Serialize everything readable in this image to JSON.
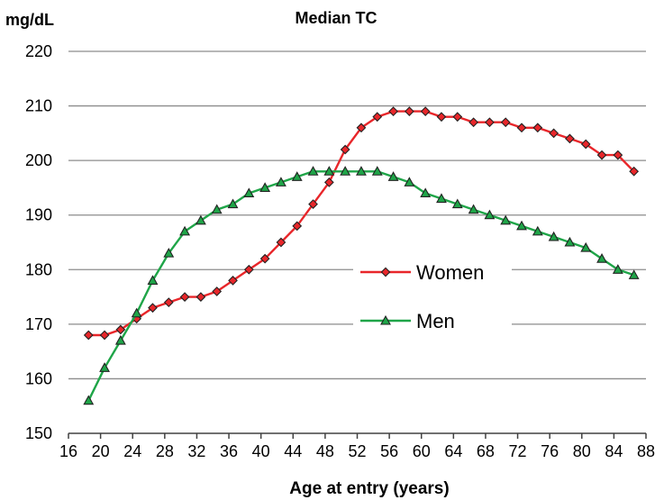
{
  "chart_data": {
    "type": "line",
    "title": "Median TC",
    "ylabel": "mg/dL",
    "xlabel": "Age at entry (years)",
    "xlim": [
      16,
      88
    ],
    "ylim": [
      150,
      220
    ],
    "xticks": [
      16,
      20,
      24,
      28,
      32,
      36,
      40,
      44,
      48,
      52,
      56,
      60,
      64,
      68,
      72,
      76,
      80,
      84,
      88
    ],
    "yticks": [
      150,
      160,
      170,
      180,
      190,
      200,
      210,
      220
    ],
    "grid": true,
    "legend_position": "center-right",
    "x": [
      18.5,
      20.5,
      22.5,
      24.5,
      26.5,
      28.5,
      30.5,
      32.5,
      34.5,
      36.5,
      38.5,
      40.5,
      42.5,
      44.5,
      46.5,
      48.5,
      50.5,
      52.5,
      54.5,
      56.5,
      58.5,
      60.5,
      62.5,
      64.5,
      66.5,
      68.5,
      70.5,
      72.5,
      74.5,
      76.5,
      78.5,
      80.5,
      82.5,
      84.5,
      86.5
    ],
    "series": [
      {
        "name": "Women",
        "color": "#e8262a",
        "marker": "diamond",
        "values": [
          168,
          168,
          169,
          171,
          173,
          174,
          175,
          175,
          176,
          178,
          180,
          182,
          185,
          188,
          192,
          196,
          202,
          206,
          208,
          209,
          209,
          209,
          208,
          208,
          207,
          207,
          207,
          206,
          206,
          205,
          204,
          203,
          201,
          201,
          198
        ]
      },
      {
        "name": "Men",
        "color": "#1fa548",
        "marker": "triangle",
        "values": [
          156,
          162,
          167,
          172,
          178,
          183,
          187,
          189,
          191,
          192,
          194,
          195,
          196,
          197,
          198,
          198,
          198,
          198,
          198,
          197,
          196,
          194,
          193,
          192,
          191,
          190,
          189,
          188,
          187,
          186,
          185,
          184,
          182,
          180,
          179
        ]
      }
    ]
  }
}
